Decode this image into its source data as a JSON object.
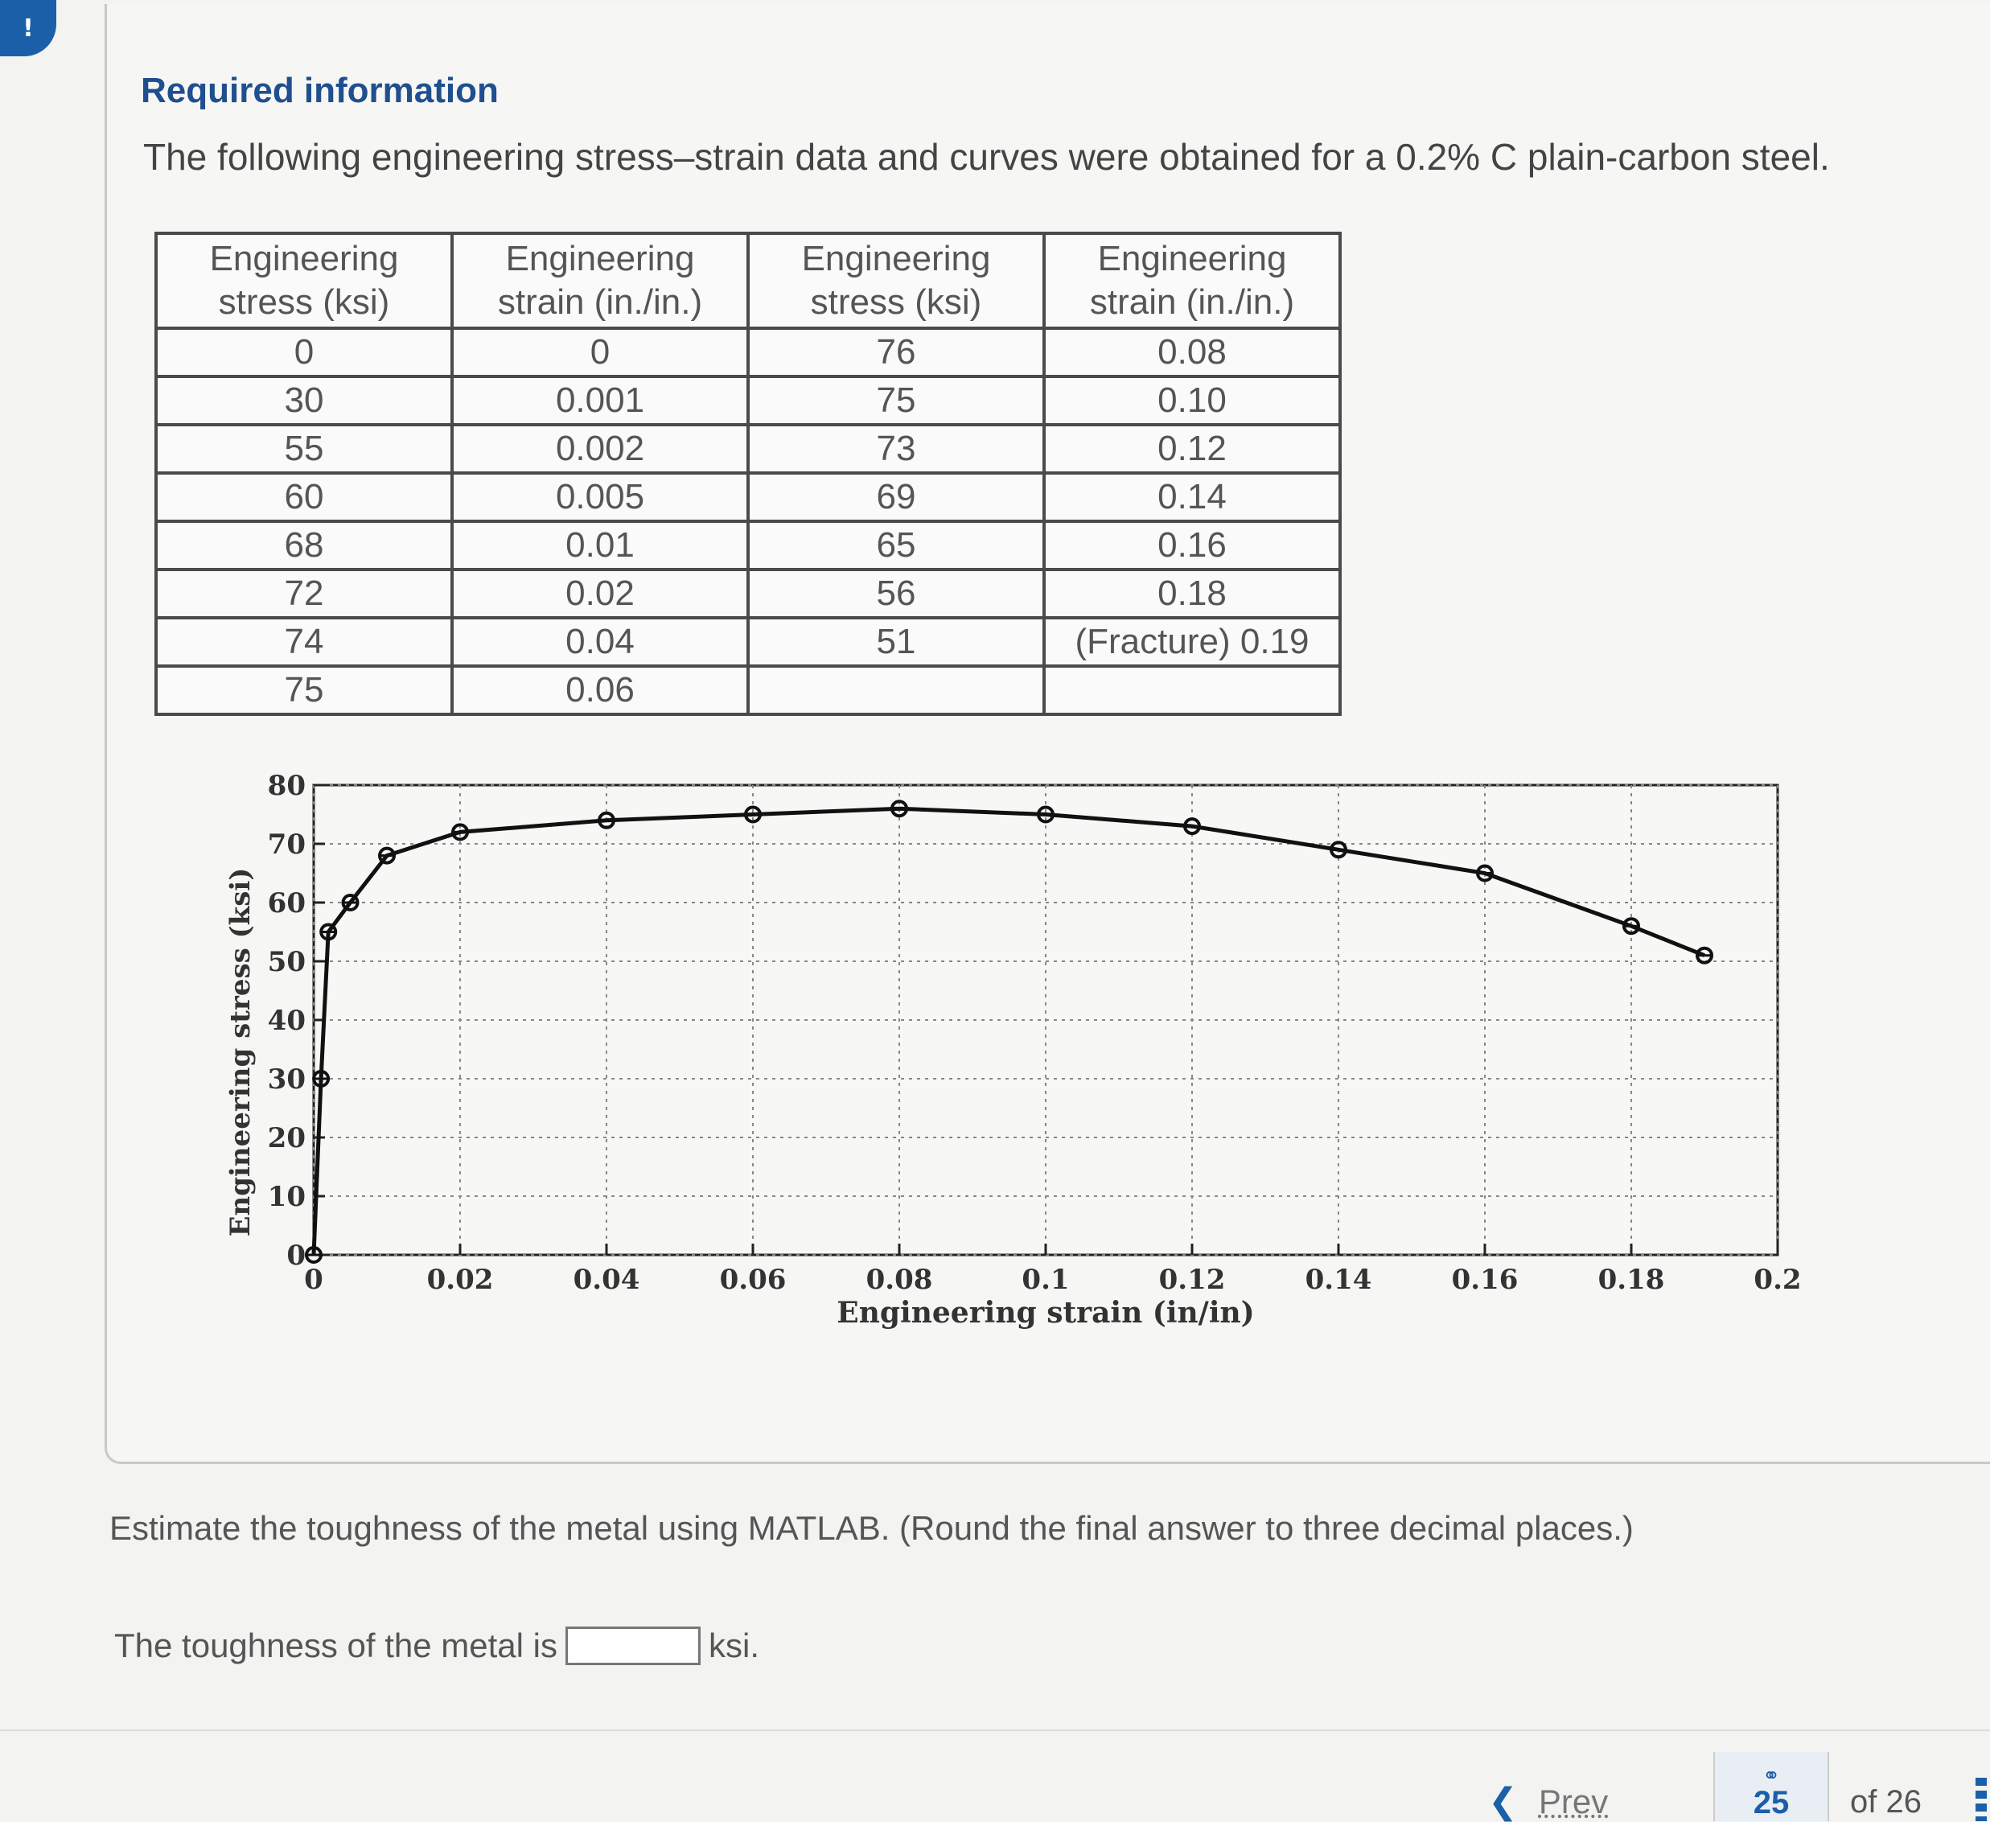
{
  "alert_glyph": "!",
  "header": {
    "title": "Required information",
    "intro": "The following engineering stress–strain data and curves were obtained for a 0.2% C plain-carbon steel."
  },
  "table": {
    "headers": [
      "Engineering stress (ksi)",
      "Engineering strain (in./in.)",
      "Engineering stress (ksi)",
      "Engineering strain (in./in.)"
    ],
    "rows": [
      [
        "0",
        "0",
        "76",
        "0.08"
      ],
      [
        "30",
        "0.001",
        "75",
        "0.10"
      ],
      [
        "55",
        "0.002",
        "73",
        "0.12"
      ],
      [
        "60",
        "0.005",
        "69",
        "0.14"
      ],
      [
        "68",
        "0.01",
        "65",
        "0.16"
      ],
      [
        "72",
        "0.02",
        "56",
        "0.18"
      ],
      [
        "74",
        "0.04",
        "51",
        "(Fracture) 0.19"
      ],
      [
        "75",
        "0.06",
        "",
        ""
      ]
    ]
  },
  "chart_data": {
    "type": "line",
    "xlabel": "Engineering strain (in/in)",
    "ylabel": "Engineering stress (ksi)",
    "xlim": [
      0,
      0.2
    ],
    "ylim": [
      0,
      80
    ],
    "grid": true,
    "x_ticks": [
      "0",
      "0.02",
      "0.04",
      "0.06",
      "0.08",
      "0.1",
      "0.12",
      "0.14",
      "0.16",
      "0.18",
      "0.2"
    ],
    "y_ticks": [
      "0",
      "10",
      "20",
      "30",
      "40",
      "50",
      "60",
      "70",
      "80"
    ],
    "x": [
      0,
      0.001,
      0.002,
      0.005,
      0.01,
      0.02,
      0.04,
      0.06,
      0.08,
      0.1,
      0.12,
      0.14,
      0.16,
      0.18,
      0.19
    ],
    "y": [
      0,
      30,
      55,
      60,
      68,
      72,
      74,
      75,
      76,
      75,
      73,
      69,
      65,
      56,
      51
    ],
    "line_color": "#111111"
  },
  "question": "Estimate the toughness of the metal using MATLAB. (Round the final answer to three decimal places.)",
  "answer": {
    "prefix": "The toughness of the metal is",
    "value": "",
    "unit": "ksi."
  },
  "navigation": {
    "prev_label": "Prev",
    "prev_icon": "chevron-left-icon",
    "link_icon": "link-icon",
    "current_page": "25",
    "of_label": "of 26"
  }
}
